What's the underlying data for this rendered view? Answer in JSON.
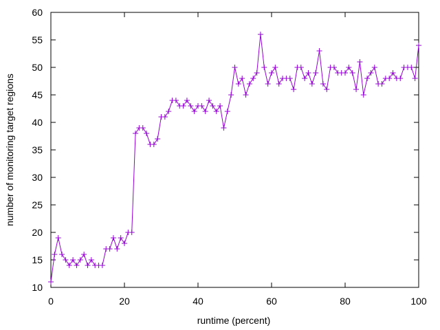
{
  "chart_data": {
    "type": "line",
    "xlabel": "runtime (percent)",
    "ylabel": "number of monitoring target regions",
    "x": [
      0,
      1,
      2,
      3,
      4,
      5,
      6,
      7,
      8,
      9,
      10,
      11,
      12,
      13,
      14,
      15,
      16,
      17,
      18,
      19,
      20,
      21,
      22,
      23,
      24,
      25,
      26,
      27,
      28,
      29,
      30,
      31,
      32,
      33,
      34,
      35,
      36,
      37,
      38,
      39,
      40,
      41,
      42,
      43,
      44,
      45,
      46,
      47,
      48,
      49,
      50,
      51,
      52,
      53,
      54,
      55,
      56,
      57,
      58,
      59,
      60,
      61,
      62,
      63,
      64,
      65,
      66,
      67,
      68,
      69,
      70,
      71,
      72,
      73,
      74,
      75,
      76,
      77,
      78,
      79,
      80,
      81,
      82,
      83,
      84,
      85,
      86,
      87,
      88,
      89,
      90,
      91,
      92,
      93,
      94,
      95,
      96,
      97,
      98,
      99,
      100
    ],
    "series": [
      {
        "color": "#9400d3",
        "marker": "+",
        "values": [
          11,
          16,
          19,
          16,
          15,
          14,
          15,
          14,
          15,
          16,
          14,
          15,
          14,
          14,
          14,
          17,
          17,
          19,
          17,
          19,
          18,
          20,
          20,
          38,
          39,
          39,
          38,
          36,
          36,
          37,
          41,
          41,
          42,
          44,
          44,
          43,
          43,
          44,
          43,
          42,
          43,
          43,
          42,
          44,
          43,
          42,
          43,
          39,
          42,
          45,
          50,
          47,
          48,
          45,
          47,
          48,
          49,
          56,
          50,
          47,
          49,
          50,
          47,
          48,
          48,
          48,
          46,
          50,
          50,
          48,
          49,
          47,
          49,
          53,
          47,
          46,
          50,
          50,
          49,
          49,
          49,
          50,
          49,
          46,
          51,
          45,
          48,
          49,
          50,
          47,
          47,
          48,
          48,
          49,
          48,
          48,
          50,
          50,
          50,
          48,
          54
        ]
      }
    ],
    "xlim": [
      0,
      100
    ],
    "xticks": [
      0,
      20,
      40,
      60,
      80,
      100
    ],
    "ylim": [
      10,
      60
    ],
    "yticks": [
      10,
      15,
      20,
      25,
      30,
      35,
      40,
      45,
      50,
      55,
      60
    ],
    "grid": false
  }
}
